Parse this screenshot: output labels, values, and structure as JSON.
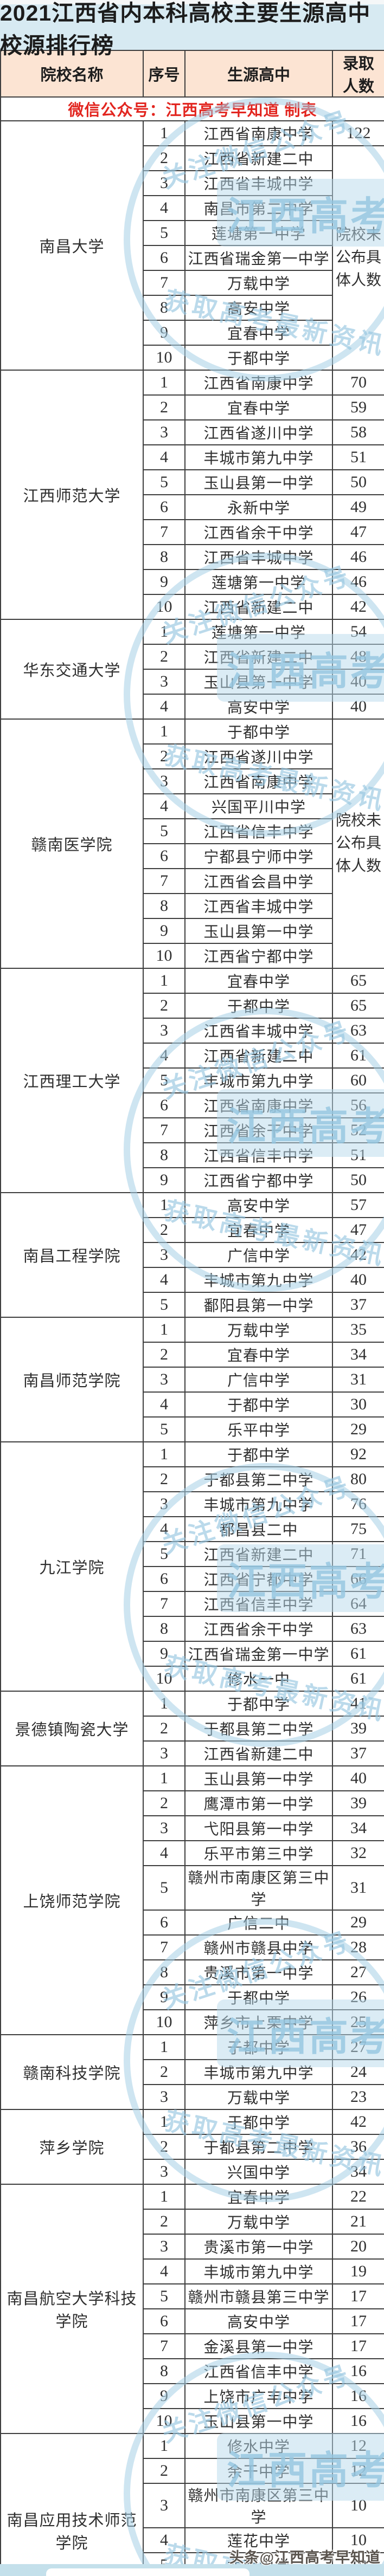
{
  "title": "2021江西省内本科高校主要生源高中校源排行榜",
  "columns": [
    "院校名称",
    "序号",
    "生源高中",
    "录取人数"
  ],
  "credit_line": "微信公众号：江西高考早知道  制表",
  "footer_badge": "头条@江西高考早知道",
  "watermark": {
    "banner": "江西高考早知道",
    "top_arc": "关注微信公众号",
    "bottom_arc": "获取高考最新资讯",
    "positions": [
      180,
      1020,
      1860,
      2700,
      3540,
      4340
    ]
  },
  "colors": {
    "title_bg": "#d7eaf2",
    "header_bg": "#fce4d3",
    "credit_red": "#e2251f",
    "border": "#3e3e3e",
    "watermark_blue": "#a6d0e5",
    "bottom_strip": "#c4e0eb"
  },
  "no_data_note": "院校未公布具体人数",
  "universities": [
    {
      "name": "南昌大学",
      "note": {
        "text": "院校未公布具体人数",
        "from": 2
      },
      "rows": [
        {
          "no": "1",
          "school": "江西省南康中学",
          "count": "122"
        },
        {
          "no": "2",
          "school": "江西省新建二中",
          "count": ""
        },
        {
          "no": "3",
          "school": "江西省丰城中学",
          "count": ""
        },
        {
          "no": "4",
          "school": "南昌市第二中学",
          "count": ""
        },
        {
          "no": "5",
          "school": "莲塘第一中学",
          "count": ""
        },
        {
          "no": "6",
          "school": "江西省瑞金第一中学",
          "count": ""
        },
        {
          "no": "7",
          "school": "万载中学",
          "count": ""
        },
        {
          "no": "8",
          "school": "高安中学",
          "count": ""
        },
        {
          "no": "9",
          "school": "宜春中学",
          "count": ""
        },
        {
          "no": "10",
          "school": "于都中学",
          "count": ""
        }
      ]
    },
    {
      "name": "江西师范大学",
      "rows": [
        {
          "no": "1",
          "school": "江西省南康中学",
          "count": "70"
        },
        {
          "no": "2",
          "school": "宜春中学",
          "count": "59"
        },
        {
          "no": "3",
          "school": "江西省遂川中学",
          "count": "58"
        },
        {
          "no": "4",
          "school": "丰城市第九中学",
          "count": "51"
        },
        {
          "no": "5",
          "school": "玉山县第一中学",
          "count": "50"
        },
        {
          "no": "6",
          "school": "永新中学",
          "count": "49"
        },
        {
          "no": "7",
          "school": "江西省余干中学",
          "count": "47"
        },
        {
          "no": "8",
          "school": "江西省丰城中学",
          "count": "46"
        },
        {
          "no": "9",
          "school": "莲塘第一中学",
          "count": "46"
        },
        {
          "no": "10",
          "school": "江西省新建二中",
          "count": "42"
        }
      ]
    },
    {
      "name": "华东交通大学",
      "rows": [
        {
          "no": "1",
          "school": "莲塘第一中学",
          "count": "54"
        },
        {
          "no": "2",
          "school": "江西省新建二中",
          "count": "48"
        },
        {
          "no": "3",
          "school": "玉山县第一中学",
          "count": "40"
        },
        {
          "no": "4",
          "school": "高安中学",
          "count": "40"
        }
      ]
    },
    {
      "name": "赣南医学院",
      "note": {
        "text": "院校未公布具体人数",
        "from": 1
      },
      "rows": [
        {
          "no": "1",
          "school": "于都中学",
          "count": ""
        },
        {
          "no": "2",
          "school": "江西省遂川中学",
          "count": ""
        },
        {
          "no": "3",
          "school": "江西省南康中学",
          "count": ""
        },
        {
          "no": "4",
          "school": "兴国平川中学",
          "count": ""
        },
        {
          "no": "5",
          "school": "江西省信丰中学",
          "count": ""
        },
        {
          "no": "6",
          "school": "宁都县宁师中学",
          "count": ""
        },
        {
          "no": "7",
          "school": "江西省会昌中学",
          "count": ""
        },
        {
          "no": "8",
          "school": "江西省丰城中学",
          "count": ""
        },
        {
          "no": "9",
          "school": "玉山县第一中学",
          "count": ""
        },
        {
          "no": "10",
          "school": "江西省宁都中学",
          "count": ""
        }
      ]
    },
    {
      "name": "江西理工大学",
      "rows": [
        {
          "no": "1",
          "school": "宜春中学",
          "count": "65"
        },
        {
          "no": "2",
          "school": "于都中学",
          "count": "65"
        },
        {
          "no": "3",
          "school": "江西省丰城中学",
          "count": "63"
        },
        {
          "no": "4",
          "school": "江西省新建二中",
          "count": "61"
        },
        {
          "no": "5",
          "school": "丰城市第九中学",
          "count": "60"
        },
        {
          "no": "6",
          "school": "江西省南康中学",
          "count": "56"
        },
        {
          "no": "7",
          "school": "江西省余干中学",
          "count": "52"
        },
        {
          "no": "8",
          "school": "江西省信丰中学",
          "count": "51"
        },
        {
          "no": "9",
          "school": "江西省宁都中学",
          "count": "50"
        }
      ]
    },
    {
      "name": "南昌工程学院",
      "rows": [
        {
          "no": "1",
          "school": "高安中学",
          "count": "57"
        },
        {
          "no": "2",
          "school": "宜春中学",
          "count": "47"
        },
        {
          "no": "3",
          "school": "广信中学",
          "count": "42"
        },
        {
          "no": "4",
          "school": "丰城市第九中学",
          "count": "40"
        },
        {
          "no": "5",
          "school": "鄱阳县第一中学",
          "count": "37"
        }
      ]
    },
    {
      "name": "南昌师范学院",
      "rows": [
        {
          "no": "1",
          "school": "万载中学",
          "count": "35"
        },
        {
          "no": "2",
          "school": "宜春中学",
          "count": "34"
        },
        {
          "no": "3",
          "school": "广信中学",
          "count": "31"
        },
        {
          "no": "4",
          "school": "于都中学",
          "count": "30"
        },
        {
          "no": "5",
          "school": "乐平中学",
          "count": "29"
        }
      ]
    },
    {
      "name": "九江学院",
      "rows": [
        {
          "no": "1",
          "school": "于都中学",
          "count": "92"
        },
        {
          "no": "2",
          "school": "于都县第二中学",
          "count": "80"
        },
        {
          "no": "3",
          "school": "丰城市第九中学",
          "count": "76"
        },
        {
          "no": "4",
          "school": "都昌县二中",
          "count": "75"
        },
        {
          "no": "5",
          "school": "江西省新建二中",
          "count": "71"
        },
        {
          "no": "6",
          "school": "江西省宁都中学",
          "count": "66"
        },
        {
          "no": "7",
          "school": "江西省信丰中学",
          "count": "64"
        },
        {
          "no": "8",
          "school": "江西省余干中学",
          "count": "63"
        },
        {
          "no": "9",
          "school": "江西省瑞金第一中学",
          "count": "61"
        },
        {
          "no": "10",
          "school": "修水一中",
          "count": "61"
        }
      ]
    },
    {
      "name": "景德镇陶瓷大学",
      "rows": [
        {
          "no": "1",
          "school": "于都中学",
          "count": "41"
        },
        {
          "no": "2",
          "school": "于都县第二中学",
          "count": "39"
        },
        {
          "no": "3",
          "school": "江西省新建二中",
          "count": "37"
        }
      ]
    },
    {
      "name": "上饶师范学院",
      "rows": [
        {
          "no": "1",
          "school": "玉山县第一中学",
          "count": "40"
        },
        {
          "no": "2",
          "school": "鹰潭市第一中学",
          "count": "39"
        },
        {
          "no": "3",
          "school": "弋阳县第一中学",
          "count": "34"
        },
        {
          "no": "4",
          "school": "乐平市第三中学",
          "count": "32"
        },
        {
          "no": "5",
          "school": "赣州市南康区第三中学",
          "count": "31"
        },
        {
          "no": "6",
          "school": "广信二中",
          "count": "29"
        },
        {
          "no": "7",
          "school": "赣州市赣县中学",
          "count": "28"
        },
        {
          "no": "8",
          "school": "贵溪市第一中学",
          "count": "27"
        },
        {
          "no": "9",
          "school": "于都中学",
          "count": "26"
        },
        {
          "no": "10",
          "school": "萍乡市上栗中学",
          "count": "25"
        }
      ]
    },
    {
      "name": "赣南科技学院",
      "rows": [
        {
          "no": "1",
          "school": "于都中学",
          "count": "27"
        },
        {
          "no": "2",
          "school": "丰城市第九中学",
          "count": "24"
        },
        {
          "no": "3",
          "school": "万载中学",
          "count": "23"
        }
      ]
    },
    {
      "name": "萍乡学院",
      "rows": [
        {
          "no": "1",
          "school": "于都中学",
          "count": "42"
        },
        {
          "no": "2",
          "school": "于都县第二中学",
          "count": "36"
        },
        {
          "no": "3",
          "school": "兴国中学",
          "count": "34"
        }
      ]
    },
    {
      "name": "南昌航空大学科技学院",
      "rows": [
        {
          "no": "1",
          "school": "宜春中学",
          "count": "22"
        },
        {
          "no": "2",
          "school": "万载中学",
          "count": "21"
        },
        {
          "no": "3",
          "school": "贵溪市第一中学",
          "count": "20"
        },
        {
          "no": "4",
          "school": "丰城市第九中学",
          "count": "19"
        },
        {
          "no": "5",
          "school": "赣州市赣县第三中学",
          "count": "17"
        },
        {
          "no": "6",
          "school": "高安中学",
          "count": "17"
        },
        {
          "no": "7",
          "school": "金溪县第一中学",
          "count": "17"
        },
        {
          "no": "8",
          "school": "江西省信丰中学",
          "count": "16"
        },
        {
          "no": "9",
          "school": "上饶市广丰中学",
          "count": "16"
        },
        {
          "no": "10",
          "school": "玉山县第一中学",
          "count": "16"
        }
      ]
    },
    {
      "name": "南昌应用技术师范学院",
      "rows": [
        {
          "no": "1",
          "school": "修水中学",
          "count": "12"
        },
        {
          "no": "2",
          "school": "余干中学",
          "count": "12"
        },
        {
          "no": "3",
          "school": "赣州市南康区第三中学",
          "count": "10"
        },
        {
          "no": "4",
          "school": "莲花中学",
          "count": "10"
        },
        {
          "no": "5",
          "school": "龙南中学",
          "count": "10"
        },
        {
          "no": "6",
          "school": "莲塘第一中学",
          "count": "10"
        },
        {
          "no": "7",
          "school": "宜春第九中学",
          "count": "10"
        }
      ]
    }
  ]
}
